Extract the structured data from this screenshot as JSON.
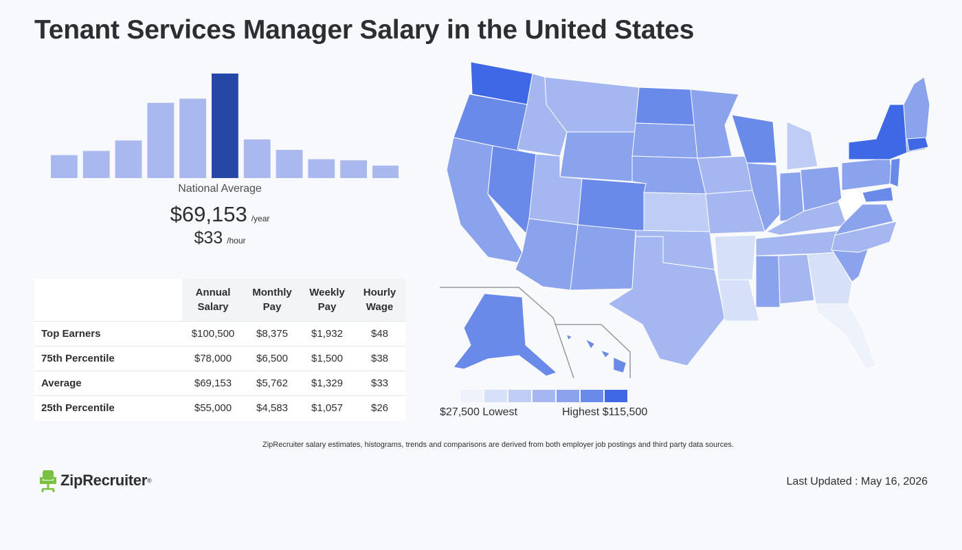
{
  "title": "Tenant Services Manager Salary in the United States",
  "chart_data": [
    {
      "type": "bar",
      "title": "",
      "values": [
        22,
        26,
        36,
        72,
        76,
        100,
        37,
        27,
        18,
        17,
        12
      ],
      "highlight_index": 5,
      "colors": {
        "bar": "#a9b9f0",
        "highlight": "#2647a6"
      }
    },
    {
      "type": "choropleth",
      "legend_low": "$27,500 Lowest",
      "legend_high": "Highest $115,500",
      "scale_colors": [
        "#eef2fb",
        "#d6e0f7",
        "#bfcdf4",
        "#a4b7f0",
        "#8aa3ec",
        "#6a8aea",
        "#3f68e6"
      ]
    }
  ],
  "national": {
    "label": "National Average",
    "year_value": "$69,153",
    "year_unit": "/year",
    "hour_value": "$33",
    "hour_unit": "/hour"
  },
  "table": {
    "headers": [
      "",
      "Annual Salary",
      "Monthly Pay",
      "Weekly Pay",
      "Hourly Wage"
    ],
    "rows": [
      [
        "Top Earners",
        "$100,500",
        "$8,375",
        "$1,932",
        "$48"
      ],
      [
        "75th Percentile",
        "$78,000",
        "$6,500",
        "$1,500",
        "$38"
      ],
      [
        "Average",
        "$69,153",
        "$5,762",
        "$1,329",
        "$33"
      ],
      [
        "25th Percentile",
        "$55,000",
        "$4,583",
        "$1,057",
        "$26"
      ]
    ]
  },
  "footnote": "ZipRecruiter salary estimates, histograms, trends and comparisons are derived from both employer job postings and third party data sources.",
  "brand": "ZipRecruiter",
  "brand_mark": "®",
  "last_updated": "Last Updated : May 16, 2026"
}
